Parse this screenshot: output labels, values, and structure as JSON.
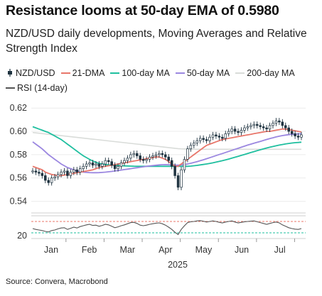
{
  "title": "Resistance looms at 50-day EMA of 0.5980",
  "subtitle": "NZD/USD daily developments, Moving Averages and Relative Strength Index",
  "source": "Source: Convera, Macrobond",
  "legend": [
    {
      "label": "NZD/USD",
      "type": "candle",
      "color": "#1f3340"
    },
    {
      "label": "21-DMA",
      "type": "line",
      "color": "#e8766a"
    },
    {
      "label": "100-day MA",
      "type": "line",
      "color": "#1fbf9f"
    },
    {
      "label": "50-day MA",
      "type": "line",
      "color": "#9b87e0"
    },
    {
      "label": "200-day MA",
      "type": "line",
      "color": "#d9dcd9"
    },
    {
      "label": "RSI (14-day)",
      "type": "line",
      "color": "#555555"
    }
  ],
  "chart_data": {
    "type": "line",
    "x_axis": {
      "labels": [
        "Jan",
        "Feb",
        "Mar",
        "Apr",
        "May",
        "Jun",
        "Jul"
      ],
      "year_label": "2025"
    },
    "price_panel": {
      "ylim": [
        0.53,
        0.625
      ],
      "yticks": [
        "0.62",
        "0.60",
        "0.58",
        "0.56",
        "0.54"
      ],
      "series": [
        {
          "name": "NZD/USD",
          "color": "#1f3340",
          "values": [
            0.566,
            0.565,
            0.564,
            0.562,
            0.558,
            0.556,
            0.56,
            0.561,
            0.563,
            0.565,
            0.566,
            0.562,
            0.565,
            0.567,
            0.565,
            0.568,
            0.57,
            0.572,
            0.573,
            0.571,
            0.572,
            0.57,
            0.572,
            0.575,
            0.574,
            0.571,
            0.568,
            0.57,
            0.573,
            0.575,
            0.577,
            0.58,
            0.581,
            0.579,
            0.576,
            0.575,
            0.576,
            0.578,
            0.579,
            0.58,
            0.581,
            0.58,
            0.578,
            0.575,
            0.57,
            0.562,
            0.552,
            0.567,
            0.576,
            0.585,
            0.588,
            0.59,
            0.592,
            0.594,
            0.593,
            0.592,
            0.595,
            0.597,
            0.596,
            0.595,
            0.594,
            0.598,
            0.6,
            0.602,
            0.6,
            0.599,
            0.601,
            0.603,
            0.604,
            0.605,
            0.606,
            0.605,
            0.604,
            0.603,
            0.602,
            0.605,
            0.607,
            0.609,
            0.608,
            0.605,
            0.603,
            0.6,
            0.598,
            0.596,
            0.595,
            0.597
          ]
        },
        {
          "name": "21-DMA",
          "color": "#e8766a",
          "values": [
            0.57,
            0.569,
            0.568,
            0.567,
            0.565,
            0.564,
            0.563,
            0.5625,
            0.562,
            0.562,
            0.5625,
            0.563,
            0.5635,
            0.564,
            0.5645,
            0.565,
            0.5655,
            0.566,
            0.5665,
            0.567,
            0.568,
            0.569,
            0.5695,
            0.57,
            0.5705,
            0.571,
            0.5715,
            0.572,
            0.5725,
            0.573,
            0.5735,
            0.574,
            0.5745,
            0.575,
            0.5755,
            0.576,
            0.5765,
            0.577,
            0.5775,
            0.578,
            0.578,
            0.577,
            0.576,
            0.574,
            0.572,
            0.57,
            0.57,
            0.572,
            0.574,
            0.576,
            0.578,
            0.58,
            0.582,
            0.584,
            0.586,
            0.588,
            0.589,
            0.59,
            0.591,
            0.592,
            0.593,
            0.5935,
            0.594,
            0.5945,
            0.595,
            0.5955,
            0.596,
            0.5965,
            0.597,
            0.5975,
            0.598,
            0.5985,
            0.599,
            0.5995,
            0.6,
            0.6,
            0.6005,
            0.601,
            0.6015,
            0.602,
            0.602,
            0.6015,
            0.601,
            0.6005,
            0.6,
            0.5995
          ]
        },
        {
          "name": "100-day MA",
          "color": "#1fbf9f",
          "values": [
            0.604,
            0.603,
            0.602,
            0.601,
            0.6,
            0.599,
            0.5975,
            0.596,
            0.5945,
            0.593,
            0.591,
            0.589,
            0.587,
            0.585,
            0.583,
            0.581,
            0.579,
            0.5775,
            0.576,
            0.5745,
            0.5735,
            0.5725,
            0.572,
            0.5715,
            0.5712,
            0.571,
            0.5708,
            0.5706,
            0.5705,
            0.5704,
            0.5703,
            0.5702,
            0.5701,
            0.57,
            0.57,
            0.57,
            0.57,
            0.57,
            0.57,
            0.57,
            0.57,
            0.57,
            0.57,
            0.57,
            0.57,
            0.57,
            0.57,
            0.57,
            0.57,
            0.57,
            0.5702,
            0.5705,
            0.5708,
            0.5712,
            0.5716,
            0.572,
            0.5725,
            0.573,
            0.5736,
            0.5742,
            0.5748,
            0.5755,
            0.5762,
            0.577,
            0.5778,
            0.5786,
            0.5794,
            0.5802,
            0.581,
            0.5818,
            0.5826,
            0.5834,
            0.5842,
            0.585,
            0.5857,
            0.5864,
            0.587,
            0.5876,
            0.5882,
            0.5887,
            0.5892,
            0.5896,
            0.59,
            0.5903,
            0.5905,
            0.5907
          ]
        },
        {
          "name": "50-day MA",
          "color": "#9b87e0",
          "values": [
            0.591,
            0.589,
            0.587,
            0.585,
            0.5825,
            0.58,
            0.578,
            0.576,
            0.574,
            0.572,
            0.5705,
            0.569,
            0.568,
            0.567,
            0.5662,
            0.5655,
            0.565,
            0.5648,
            0.5646,
            0.5645,
            0.5645,
            0.5646,
            0.5648,
            0.565,
            0.5653,
            0.5656,
            0.566,
            0.5664,
            0.5668,
            0.5672,
            0.5676,
            0.568,
            0.5684,
            0.5688,
            0.5692,
            0.5696,
            0.57,
            0.5703,
            0.5706,
            0.5709,
            0.5712,
            0.5714,
            0.5715,
            0.5714,
            0.5712,
            0.571,
            0.571,
            0.5712,
            0.5715,
            0.572,
            0.5726,
            0.5733,
            0.574,
            0.5748,
            0.5756,
            0.5765,
            0.5774,
            0.5783,
            0.5792,
            0.5801,
            0.581,
            0.5819,
            0.5828,
            0.5837,
            0.5846,
            0.5855,
            0.5864,
            0.5873,
            0.5882,
            0.589,
            0.5898,
            0.5906,
            0.5914,
            0.5922,
            0.593,
            0.5938,
            0.5945,
            0.5952,
            0.5958,
            0.5964,
            0.5968,
            0.5972,
            0.5975,
            0.5977,
            0.5978,
            0.598
          ]
        },
        {
          "name": "200-day MA",
          "color": "#d9dcd9",
          "values": [
            0.599,
            0.5987,
            0.5984,
            0.5981,
            0.5978,
            0.5975,
            0.5972,
            0.5969,
            0.5966,
            0.5963,
            0.596,
            0.5957,
            0.5954,
            0.5951,
            0.5948,
            0.5945,
            0.5942,
            0.5939,
            0.5936,
            0.5933,
            0.593,
            0.5927,
            0.5924,
            0.5921,
            0.5918,
            0.5915,
            0.5912,
            0.5909,
            0.5906,
            0.5903,
            0.59,
            0.5897,
            0.5894,
            0.5891,
            0.5888,
            0.5885,
            0.5882,
            0.5879,
            0.5876,
            0.5873,
            0.587,
            0.5867,
            0.5864,
            0.5861,
            0.5858,
            0.5855,
            0.5852,
            0.585,
            0.5849,
            0.5848,
            0.5847,
            0.5847,
            0.5846,
            0.5846,
            0.5846,
            0.5846,
            0.5846,
            0.5846,
            0.5846,
            0.5846,
            0.5846,
            0.5846,
            0.5846,
            0.5846,
            0.5846,
            0.5846,
            0.5846,
            0.5846,
            0.5846,
            0.5846,
            0.5846,
            0.5846,
            0.5846,
            0.5846,
            0.5846,
            0.5846,
            0.5846,
            0.5846,
            0.5846,
            0.5846,
            0.5846,
            0.5846,
            0.5846,
            0.5846,
            0.5846,
            0.5846
          ]
        }
      ]
    },
    "rsi_panel": {
      "ylim": [
        10,
        90
      ],
      "yticks": [
        "20"
      ],
      "reference_lines": [
        {
          "value": 30,
          "color": "#1fbf9f"
        },
        {
          "value": 70,
          "color": "#e8766a"
        }
      ],
      "series": [
        {
          "name": "RSI (14-day)",
          "color": "#555555",
          "values": [
            45,
            42,
            40,
            38,
            35,
            33,
            38,
            40,
            44,
            47,
            48,
            42,
            46,
            50,
            47,
            52,
            55,
            58,
            60,
            56,
            57,
            53,
            56,
            60,
            58,
            53,
            48,
            51,
            55,
            58,
            62,
            66,
            67,
            63,
            57,
            55,
            57,
            60,
            62,
            64,
            65,
            62,
            57,
            50,
            42,
            32,
            24,
            42,
            55,
            66,
            69,
            70,
            72,
            73,
            71,
            68,
            70,
            72,
            70,
            67,
            65,
            68,
            70,
            72,
            68,
            65,
            67,
            69,
            70,
            71,
            72,
            69,
            66,
            63,
            60,
            63,
            66,
            68,
            65,
            58,
            53,
            48,
            45,
            43,
            42,
            45
          ]
        }
      ]
    }
  }
}
